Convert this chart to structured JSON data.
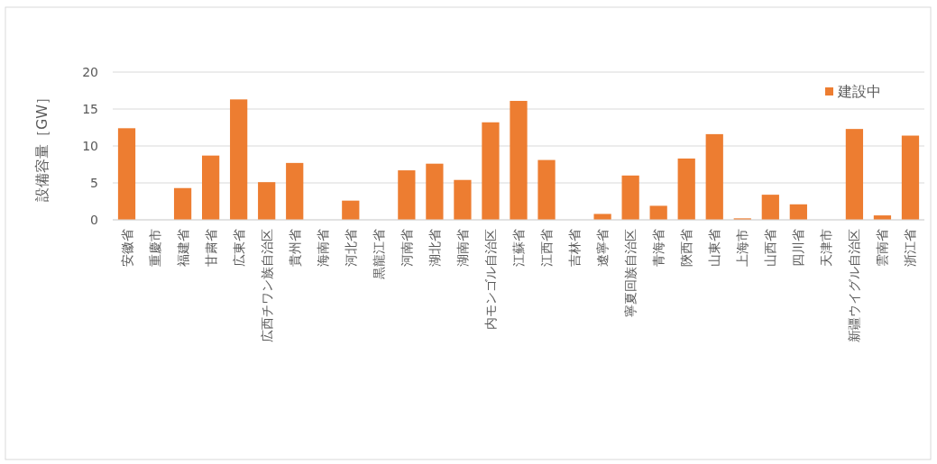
{
  "chart_data": {
    "type": "bar",
    "ylabel": "設備容量［GW］",
    "categories": [
      "安徽省",
      "重慶市",
      "福建省",
      "甘粛省",
      "広東省",
      "広西チワン族自治区",
      "貴州省",
      "海南省",
      "河北省",
      "黒龍江省",
      "河南省",
      "湖北省",
      "湖南省",
      "内モンゴル自治区",
      "江蘇省",
      "江西省",
      "吉林省",
      "遼寧省",
      "寧夏回族自治区",
      "青海省",
      "陝西省",
      "山東省",
      "上海市",
      "山西省",
      "四川省",
      "天津市",
      "新疆ウイグル自治区",
      "雲南省",
      "浙江省"
    ],
    "series": [
      {
        "name": "建設中",
        "color": "#ed7d31",
        "values": [
          12.4,
          0,
          4.3,
          8.7,
          16.3,
          5.1,
          7.7,
          0,
          2.6,
          0,
          6.7,
          7.6,
          5.4,
          13.2,
          16.1,
          8.1,
          0,
          0.8,
          6.0,
          1.9,
          8.3,
          11.6,
          0.2,
          3.4,
          2.1,
          0,
          12.3,
          0.6,
          11.4
        ]
      }
    ],
    "ylim": [
      0,
      20
    ],
    "yticks": [
      0,
      5,
      10,
      15,
      20
    ],
    "grid": "y",
    "legend": "top right"
  }
}
